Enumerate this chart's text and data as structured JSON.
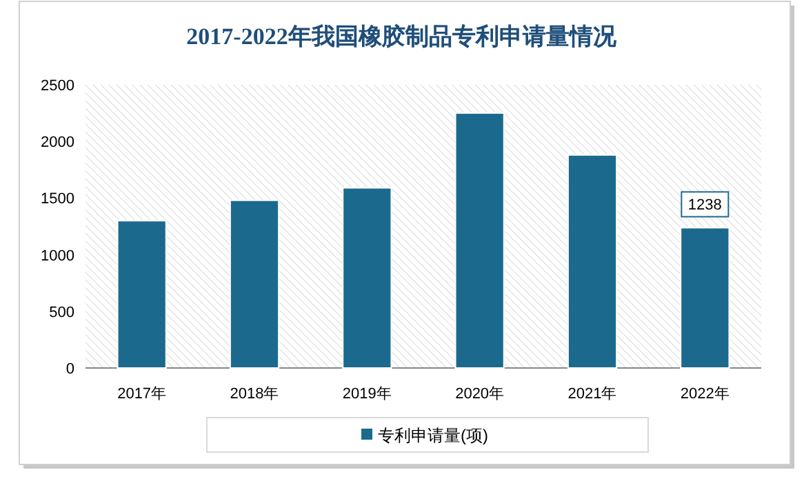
{
  "chart_data": {
    "type": "bar",
    "title": "2017-2022年我国橡胶制品专利申请量情况",
    "categories": [
      "2017年",
      "2018年",
      "2019年",
      "2020年",
      "2021年",
      "2022年"
    ],
    "series": [
      {
        "name": "专利申请量(项)",
        "color": "#1b6a8d",
        "values": [
          1300,
          1480,
          1590,
          2250,
          1880,
          1238
        ],
        "value_labels": [
          null,
          null,
          null,
          null,
          null,
          "1238"
        ]
      }
    ],
    "ylim": [
      0,
      2500
    ],
    "yticks": [
      0,
      500,
      1000,
      1500,
      2000,
      2500
    ],
    "grid": false,
    "legend": "bottom"
  }
}
